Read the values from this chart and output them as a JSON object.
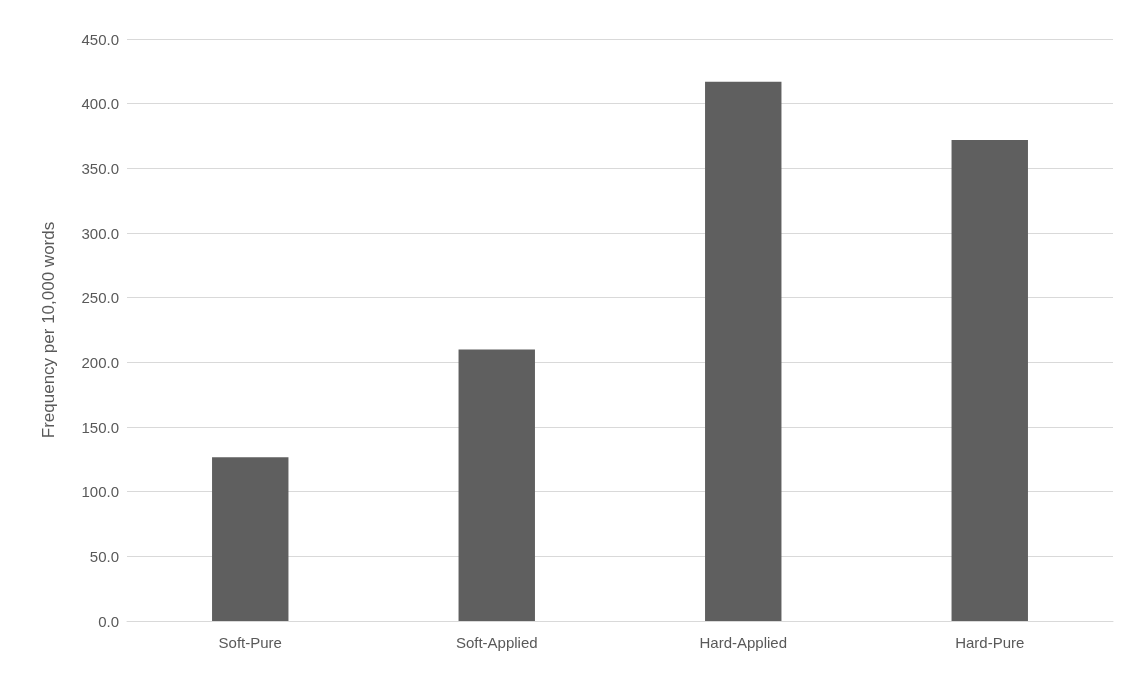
{
  "chart_data": {
    "type": "bar",
    "ylabel": "Frequency per 10,000 words",
    "categories": [
      "Soft-Pure",
      "Soft-Applied",
      "Hard-Applied",
      "Hard-Pure"
    ],
    "values": [
      126.6,
      210,
      417,
      372
    ],
    "color": "#5f5f5f",
    "ylim": [
      0,
      450
    ],
    "yticks": [
      {
        "value": 0,
        "label": "0.0"
      },
      {
        "value": 50,
        "label": "50.0"
      },
      {
        "value": 100,
        "label": "100.0"
      },
      {
        "value": 150,
        "label": "150.0"
      },
      {
        "value": 200,
        "label": "200.0"
      },
      {
        "value": 250,
        "label": "250.0"
      },
      {
        "value": 300,
        "label": "300.0"
      },
      {
        "value": 350,
        "label": "350.0"
      },
      {
        "value": 400,
        "label": "400.0"
      },
      {
        "value": 450,
        "label": "450.0"
      }
    ],
    "grid": "y"
  }
}
